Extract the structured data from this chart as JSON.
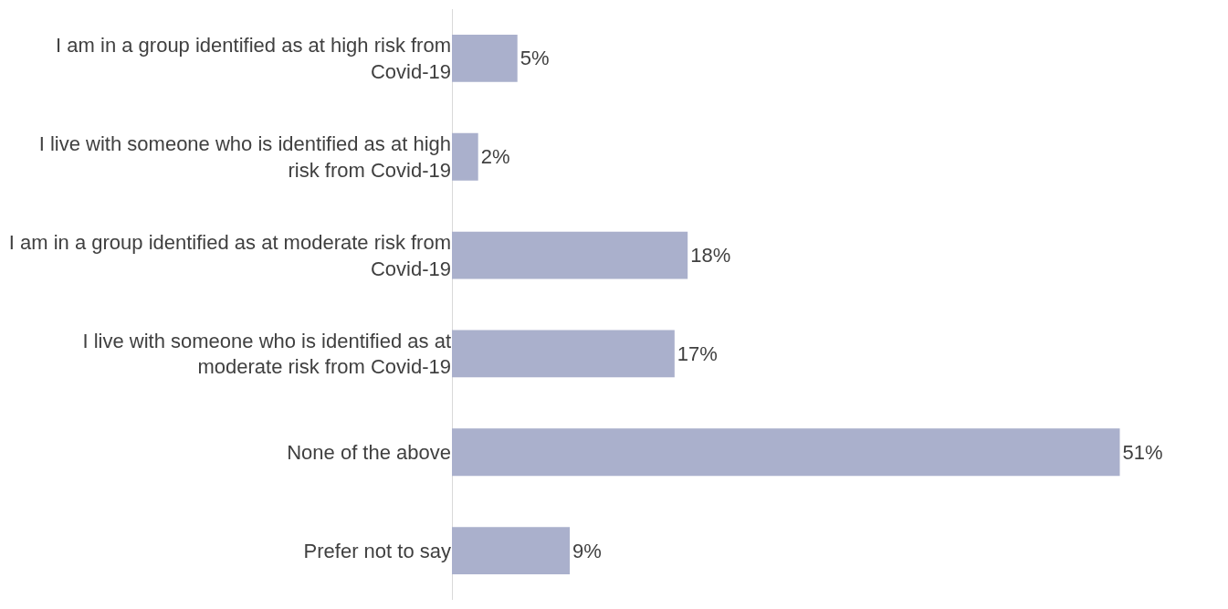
{
  "chart_data": {
    "type": "bar",
    "orientation": "horizontal",
    "categories": [
      "I am in a group identified as at high risk from Covid-19",
      "I live with someone who is identified as at high risk from Covid-19",
      "I am in a group identified as at moderate risk from Covid-19",
      "I live with someone who is identified as at moderate risk from Covid-19",
      "None of the above",
      "Prefer not to say"
    ],
    "values": [
      5,
      2,
      18,
      17,
      51,
      9
    ],
    "value_labels": [
      "5%",
      "2%",
      "18%",
      "17%",
      "51%",
      "9%"
    ],
    "color": "#aab0cc",
    "grid": false,
    "legend": false
  }
}
